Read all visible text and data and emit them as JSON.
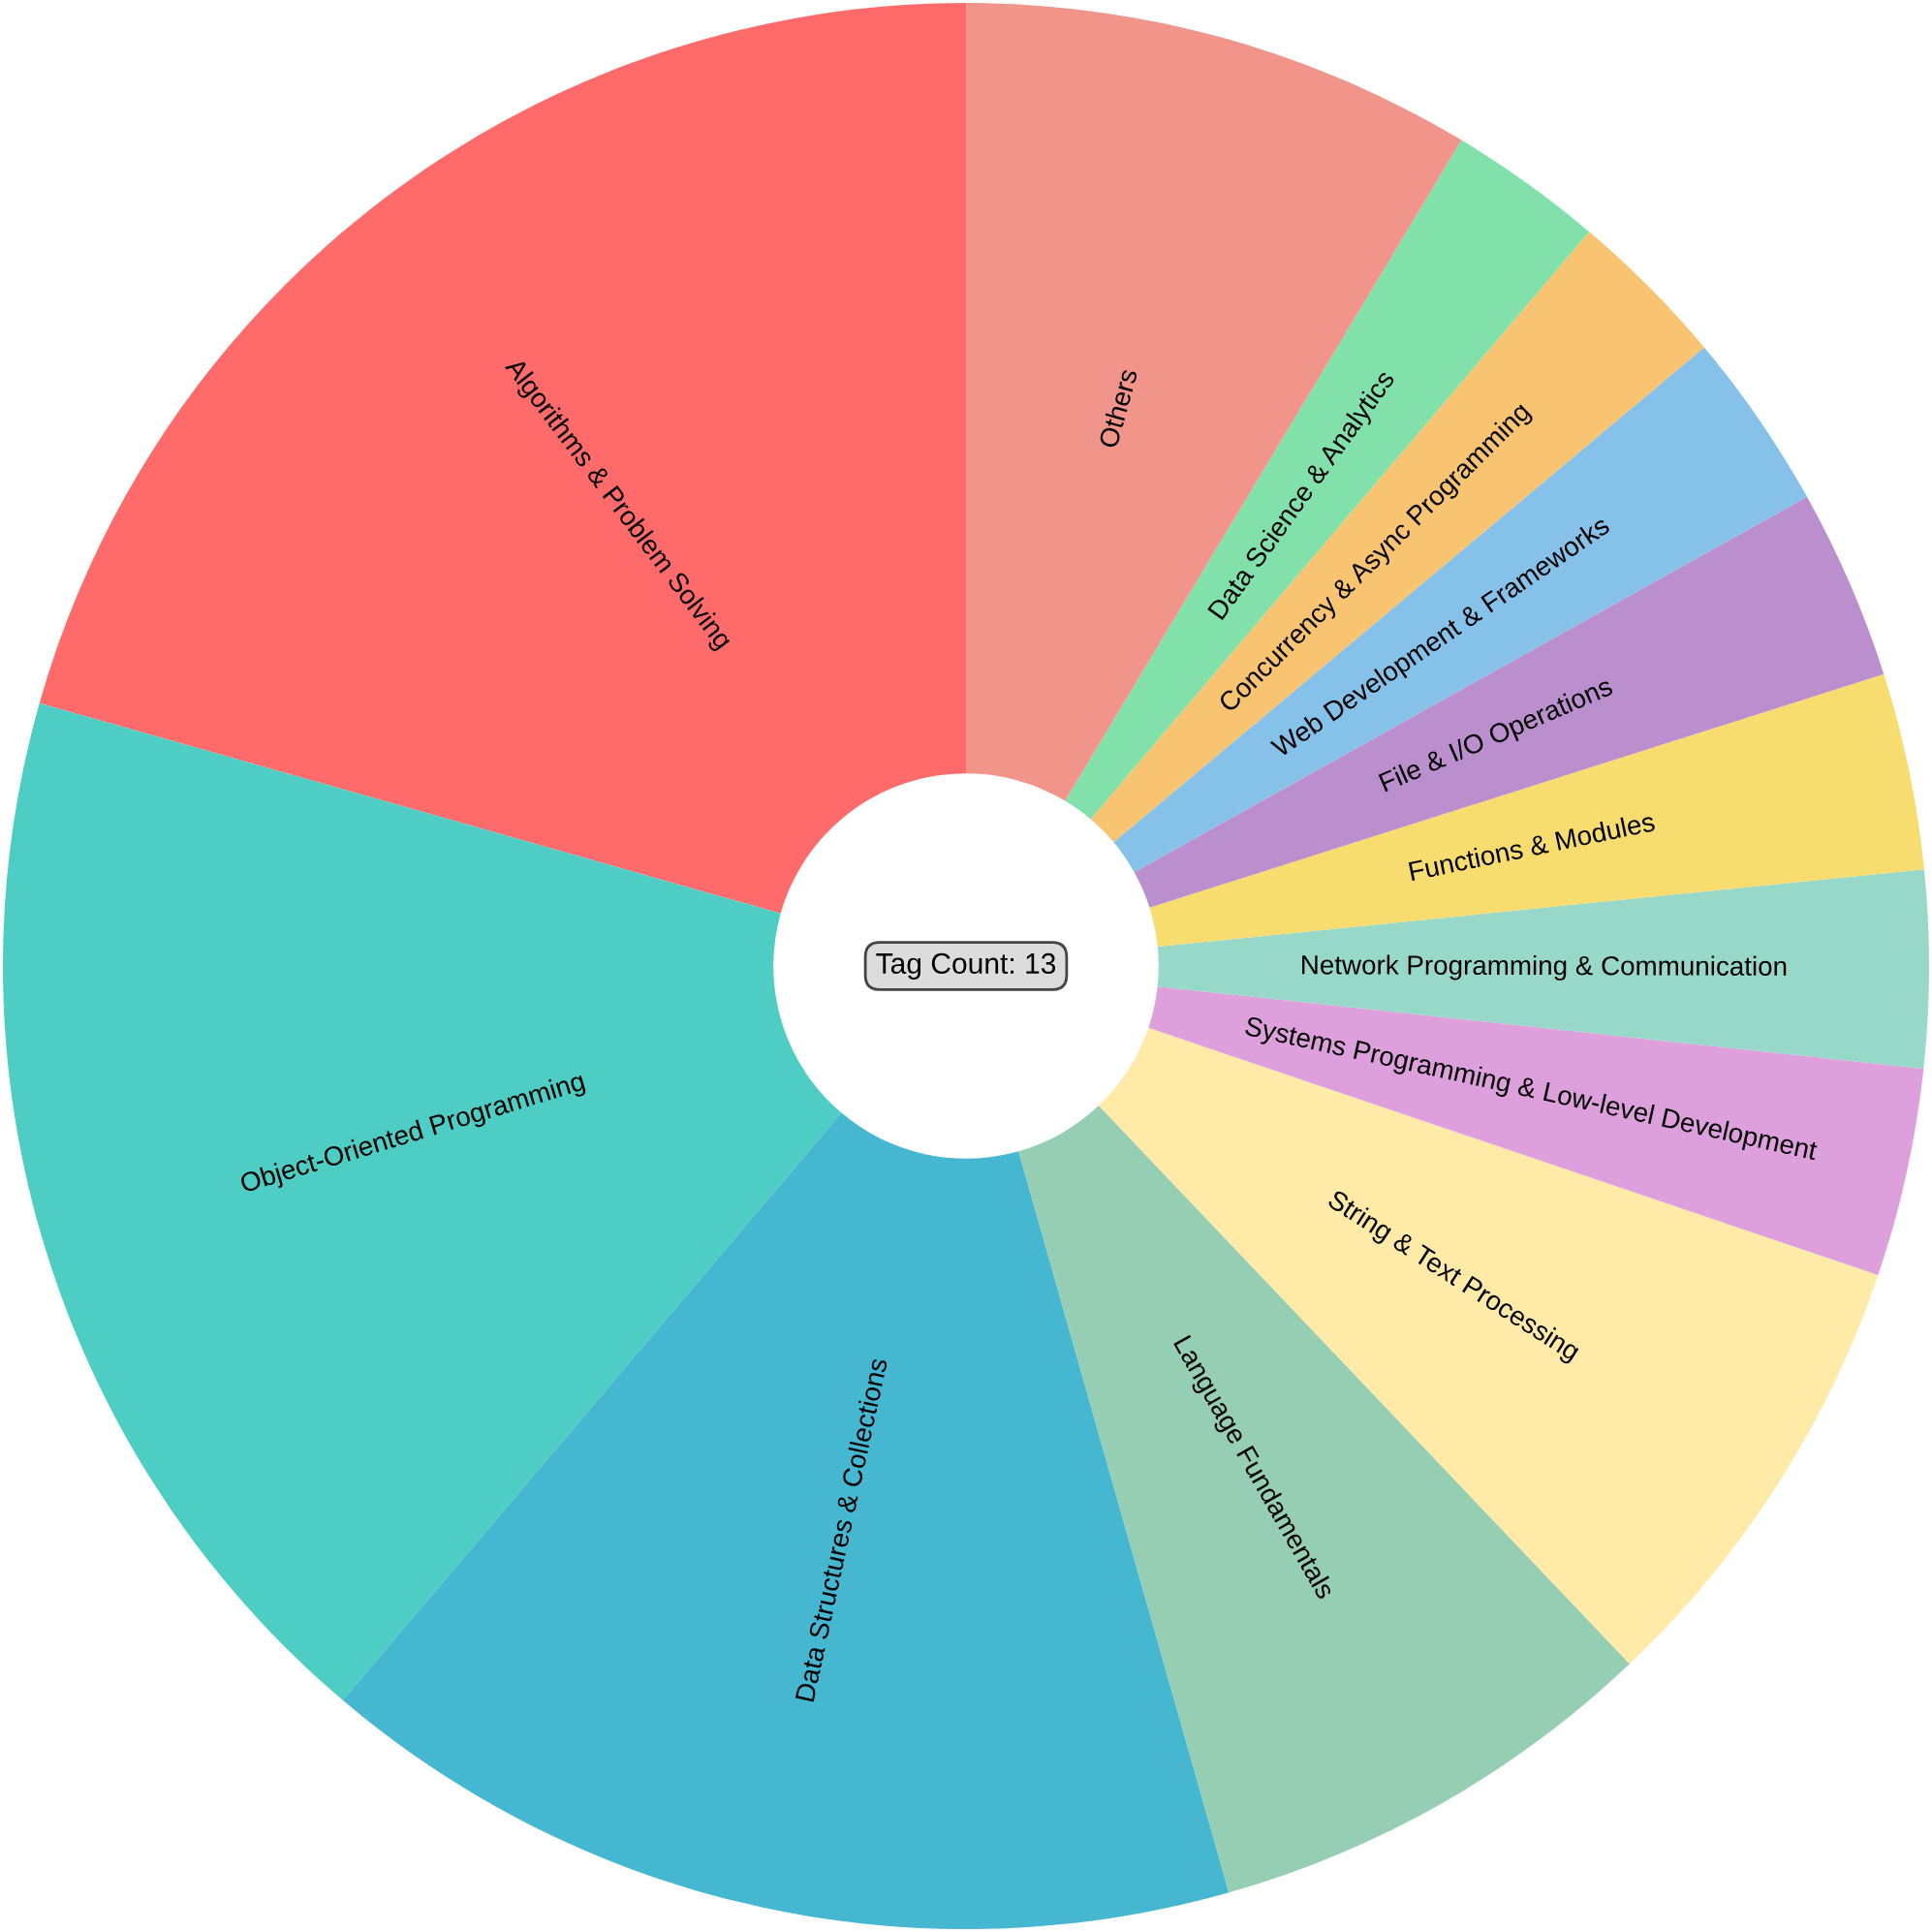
{
  "chart_data": {
    "type": "donut",
    "categories": [
      "Algorithms & Problem Solving",
      "Object-Oriented Programming",
      "Data Structures & Collections",
      "Language Fundamentals",
      "String & Text Processing",
      "Systems Programming & Low-level Development",
      "Network Programming & Communication",
      "Functions & Modules",
      "File & I/O Operations",
      "Web Development & Frameworks",
      "Concurrency & Async Programming",
      "Data Science & Analytics",
      "Others"
    ],
    "values": [
      20.6,
      18.2,
      15.6,
      7.7,
      7.7,
      3.5,
      3.3,
      3.3,
      3.2,
      3.0,
      2.7,
      2.6,
      8.6
    ],
    "colors": [
      "#ff6b6b",
      "#4ecdc4",
      "#45b7d1",
      "#96ceb4",
      "#ffeaa7",
      "#dda0dd",
      "#98d8c8",
      "#f7dc6f",
      "#bb8fce",
      "#85c1e9",
      "#f8c471",
      "#82e0aa",
      "#f1948a"
    ],
    "annotations": [
      "Tag Count: 13"
    ]
  }
}
